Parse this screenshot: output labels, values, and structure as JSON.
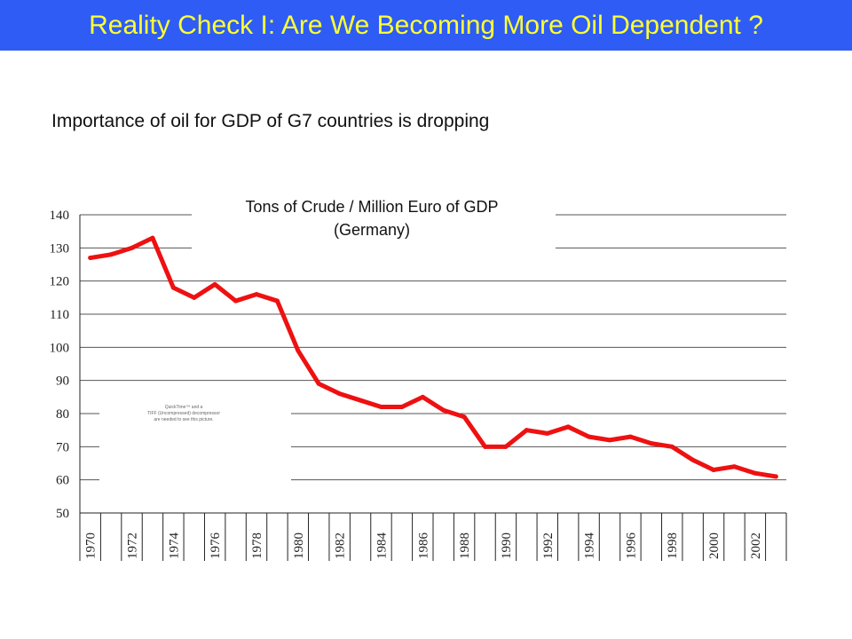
{
  "slide": {
    "title": "Reality Check I: Are We Becoming More Oil Dependent ?",
    "subtitle": "Importance of oil for GDP of G7 countries is dropping",
    "chart_title_line1": "Tons of Crude  / Million Euro of GDP",
    "chart_title_line2": "(Germany)",
    "placeholder_lines": [
      "QuickTime™ and a",
      "TIFF (Uncompressed) decompressor",
      "are needed to see this picture."
    ]
  },
  "colors": {
    "title_bar": "#2e5cf5",
    "title_text": "#ffff33",
    "line": "#ee1111",
    "grid": "#555555"
  },
  "chart_data": {
    "type": "line",
    "title": "Tons of Crude  / Million Euro of GDP (Germany)",
    "xlabel": "",
    "ylabel": "",
    "x": [
      1970,
      1971,
      1972,
      1973,
      1974,
      1975,
      1976,
      1977,
      1978,
      1979,
      1980,
      1981,
      1982,
      1983,
      1984,
      1985,
      1986,
      1987,
      1988,
      1989,
      1990,
      1991,
      1992,
      1993,
      1994,
      1995,
      1996,
      1997,
      1998,
      1999,
      2000,
      2001,
      2002,
      2003
    ],
    "series": [
      {
        "values": [
          127,
          128,
          130,
          133,
          118,
          115,
          119,
          114,
          116,
          114,
          99,
          89,
          86,
          84,
          82,
          82,
          85,
          81,
          79,
          70,
          70,
          75,
          74,
          76,
          73,
          72,
          73,
          71,
          70,
          66,
          63,
          64,
          62,
          61
        ]
      }
    ],
    "x_tick_labels": [
      "1970",
      "1972",
      "1974",
      "1976",
      "1978",
      "1980",
      "1982",
      "1984",
      "1986",
      "1988",
      "1990",
      "1992",
      "1994",
      "1996",
      "1998",
      "2000",
      "2002"
    ],
    "y_ticks": [
      50,
      60,
      70,
      80,
      90,
      100,
      110,
      120,
      130,
      140
    ],
    "ylim": [
      50,
      140
    ],
    "xlim": [
      1969.5,
      2003.5
    ],
    "grid": true,
    "legend": "none"
  }
}
